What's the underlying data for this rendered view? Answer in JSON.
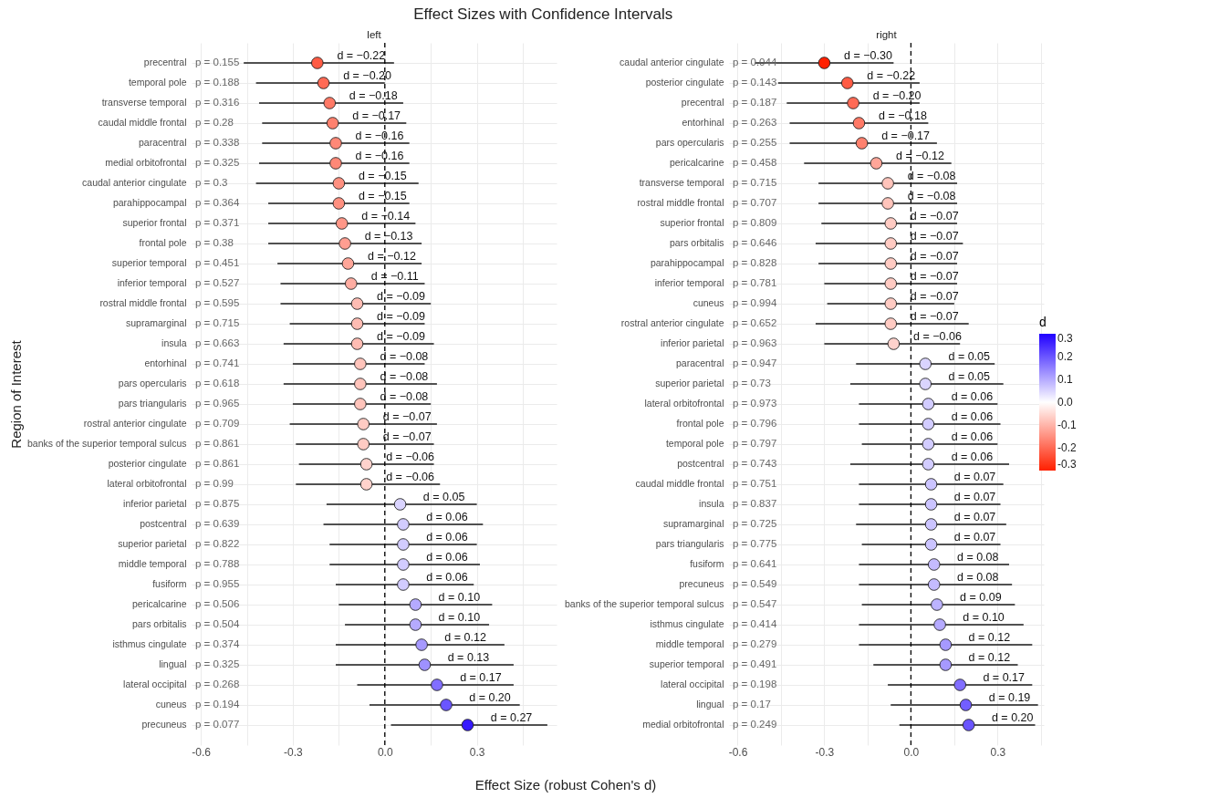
{
  "chart_data": [
    {
      "type": "scatter",
      "orientation": "horizontal",
      "title": "Effect Sizes with Confidence Intervals",
      "subtitle": "left",
      "xlabel": "Effect Size (robust Cohen's d)",
      "ylabel": "Region of Interest",
      "categories": [
        "precentral",
        "temporal pole",
        "transverse temporal",
        "caudal middle frontal",
        "paracentral",
        "medial orbitofrontal",
        "caudal anterior cingulate",
        "parahippocampal",
        "superior frontal",
        "frontal pole",
        "superior temporal",
        "inferior temporal",
        "rostral middle frontal",
        "supramarginal",
        "insula",
        "entorhinal",
        "pars opercularis",
        "pars triangularis",
        "rostral anterior cingulate",
        "banks of the superior temporal sulcus",
        "posterior cingulate",
        "lateral orbitofrontal",
        "inferior parietal",
        "postcentral",
        "superior parietal",
        "middle temporal",
        "fusiform",
        "pericalcarine",
        "pars orbitalis",
        "isthmus cingulate",
        "lingual",
        "lateral occipital",
        "cuneus",
        "precuneus"
      ],
      "values": [
        -0.22,
        -0.2,
        -0.18,
        -0.17,
        -0.16,
        -0.16,
        -0.15,
        -0.15,
        -0.14,
        -0.13,
        -0.12,
        -0.11,
        -0.09,
        -0.09,
        -0.09,
        -0.08,
        -0.08,
        -0.08,
        -0.07,
        -0.07,
        -0.06,
        -0.06,
        0.05,
        0.06,
        0.06,
        0.06,
        0.06,
        0.1,
        0.1,
        0.12,
        0.13,
        0.17,
        0.2,
        0.27
      ],
      "errors": [
        [
          -0.46,
          0.03
        ],
        [
          -0.42,
          0.0
        ],
        [
          -0.41,
          0.06
        ],
        [
          -0.4,
          0.07
        ],
        [
          -0.4,
          0.08
        ],
        [
          -0.41,
          0.08
        ],
        [
          -0.42,
          0.11
        ],
        [
          -0.38,
          0.08
        ],
        [
          -0.38,
          0.1
        ],
        [
          -0.38,
          0.12
        ],
        [
          -0.35,
          0.12
        ],
        [
          -0.34,
          0.13
        ],
        [
          -0.34,
          0.15
        ],
        [
          -0.31,
          0.13
        ],
        [
          -0.33,
          0.16
        ],
        [
          -0.3,
          0.13
        ],
        [
          -0.33,
          0.17
        ],
        [
          -0.3,
          0.15
        ],
        [
          -0.31,
          0.17
        ],
        [
          -0.29,
          0.16
        ],
        [
          -0.28,
          0.16
        ],
        [
          -0.29,
          0.18
        ],
        [
          -0.19,
          0.3
        ],
        [
          -0.2,
          0.32
        ],
        [
          -0.18,
          0.3
        ],
        [
          -0.18,
          0.31
        ],
        [
          -0.16,
          0.29
        ],
        [
          -0.15,
          0.35
        ],
        [
          -0.13,
          0.34
        ],
        [
          -0.16,
          0.39
        ],
        [
          -0.16,
          0.42
        ],
        [
          -0.09,
          0.42
        ],
        [
          -0.05,
          0.44
        ],
        [
          0.02,
          0.53
        ]
      ],
      "value_labels": [
        "d = −0.22",
        "d = −0.20",
        "d = −0.18",
        "d = −0.17",
        "d = −0.16",
        "d = −0.16",
        "d = −0.15",
        "d = −0.15",
        "d = −0.14",
        "d = −0.13",
        "d = −0.12",
        "d = −0.11",
        "d = −0.09",
        "d = −0.09",
        "d = −0.09",
        "d = −0.08",
        "d = −0.08",
        "d = −0.08",
        "d = −0.07",
        "d = −0.07",
        "d = −0.06",
        "d = −0.06",
        "d = 0.05",
        "d = 0.06",
        "d = 0.06",
        "d = 0.06",
        "d = 0.06",
        "d = 0.10",
        "d = 0.10",
        "d = 0.12",
        "d = 0.13",
        "d = 0.17",
        "d = 0.20",
        "d = 0.27"
      ],
      "annotations": [
        "p = 0.155",
        "p = 0.188",
        "p = 0.316",
        "p = 0.28",
        "p = 0.338",
        "p = 0.325",
        "p = 0.3",
        "p = 0.364",
        "p = 0.371",
        "p = 0.38",
        "p = 0.451",
        "p = 0.527",
        "p = 0.595",
        "p = 0.715",
        "p = 0.663",
        "p = 0.741",
        "p = 0.618",
        "p = 0.965",
        "p = 0.709",
        "p = 0.861",
        "p = 0.861",
        "p = 0.99",
        "p = 0.875",
        "p = 0.639",
        "p = 0.822",
        "p = 0.788",
        "p = 0.955",
        "p = 0.506",
        "p = 0.504",
        "p = 0.374",
        "p = 0.325",
        "p = 0.268",
        "p = 0.194",
        "p = 0.077"
      ],
      "xlim": [
        -0.63,
        0.56
      ],
      "xticks": [
        -0.6,
        {
          "value": -0.45,
          "label": null
        },
        -0.3,
        {
          "value": -0.15,
          "label": null
        },
        {
          "value": 0,
          "label": "0.0"
        },
        {
          "value": 0.15,
          "label": null
        },
        0.3,
        {
          "value": 0.45,
          "label": null
        }
      ],
      "ref_lines": [
        {
          "axis": "x",
          "value": 0,
          "line_style": "dashed",
          "color": "#000000"
        }
      ],
      "marker": "circle",
      "grid": true
    },
    {
      "type": "scatter",
      "orientation": "horizontal",
      "subtitle": "right",
      "categories": [
        "caudal anterior cingulate",
        "posterior cingulate",
        "precentral",
        "entorhinal",
        "pars opercularis",
        "pericalcarine",
        "transverse temporal",
        "rostral middle frontal",
        "superior frontal",
        "pars orbitalis",
        "parahippocampal",
        "inferior temporal",
        "cuneus",
        "rostral anterior cingulate",
        "inferior parietal",
        "paracentral",
        "superior parietal",
        "lateral orbitofrontal",
        "frontal pole",
        "temporal pole",
        "postcentral",
        "caudal middle frontal",
        "insula",
        "supramarginal",
        "pars triangularis",
        "fusiform",
        "precuneus",
        "banks of the superior temporal sulcus",
        "isthmus cingulate",
        "middle temporal",
        "superior temporal",
        "lateral occipital",
        "lingual",
        "medial orbitofrontal"
      ],
      "values": [
        -0.3,
        -0.22,
        -0.2,
        -0.18,
        -0.17,
        -0.12,
        -0.08,
        -0.08,
        -0.07,
        -0.07,
        -0.07,
        -0.07,
        -0.07,
        -0.07,
        -0.06,
        0.05,
        0.05,
        0.06,
        0.06,
        0.06,
        0.06,
        0.07,
        0.07,
        0.07,
        0.07,
        0.08,
        0.08,
        0.09,
        0.1,
        0.12,
        0.12,
        0.17,
        0.19,
        0.2
      ],
      "cvalues": [
        -0.3,
        -0.22,
        -0.2,
        -0.18,
        -0.17,
        -0.12,
        -0.08,
        -0.08,
        -0.07,
        -0.07,
        -0.07,
        -0.07,
        -0.07,
        -0.07,
        -0.06,
        0.05,
        0.05,
        0.06,
        0.06,
        0.06,
        0.06,
        0.07,
        0.07,
        0.07,
        0.07,
        0.08,
        0.08,
        0.09,
        0.1,
        0.12,
        0.12,
        0.17,
        0.19,
        0.2
      ],
      "errors": [
        [
          -0.54,
          -0.06
        ],
        [
          -0.46,
          0.03
        ],
        [
          -0.43,
          0.03
        ],
        [
          -0.42,
          0.06
        ],
        [
          -0.42,
          0.09
        ],
        [
          -0.37,
          0.14
        ],
        [
          -0.32,
          0.16
        ],
        [
          -0.32,
          0.16
        ],
        [
          -0.31,
          0.16
        ],
        [
          -0.33,
          0.18
        ],
        [
          -0.32,
          0.16
        ],
        [
          -0.3,
          0.16
        ],
        [
          -0.29,
          0.15
        ],
        [
          -0.33,
          0.2
        ],
        [
          -0.3,
          0.17
        ],
        [
          -0.19,
          0.29
        ],
        [
          -0.21,
          0.32
        ],
        [
          -0.18,
          0.3
        ],
        [
          -0.18,
          0.31
        ],
        [
          -0.17,
          0.3
        ],
        [
          -0.21,
          0.34
        ],
        [
          -0.18,
          0.32
        ],
        [
          -0.18,
          0.31
        ],
        [
          -0.19,
          0.33
        ],
        [
          -0.17,
          0.31
        ],
        [
          -0.18,
          0.34
        ],
        [
          -0.18,
          0.35
        ],
        [
          -0.17,
          0.36
        ],
        [
          -0.18,
          0.39
        ],
        [
          -0.18,
          0.42
        ],
        [
          -0.13,
          0.37
        ],
        [
          -0.08,
          0.42
        ],
        [
          -0.07,
          0.44
        ],
        [
          -0.04,
          0.43
        ]
      ],
      "value_labels": [
        "d = −0.30",
        "d = −0.22",
        "d = −0.20",
        "d = −0.18",
        "d = −0.17",
        "d = −0.12",
        "d = −0.08",
        "d = −0.08",
        "d = −0.07",
        "d = −0.07",
        "d = −0.07",
        "d = −0.07",
        "d = −0.07",
        "d = −0.07",
        "d = −0.06",
        "d = 0.05",
        "d = 0.05",
        "d = 0.06",
        "d = 0.06",
        "d = 0.06",
        "d = 0.06",
        "d = 0.07",
        "d = 0.07",
        "d = 0.07",
        "d = 0.07",
        "d = 0.08",
        "d = 0.08",
        "d = 0.09",
        "d = 0.10",
        "d = 0.12",
        "d = 0.12",
        "d = 0.17",
        "d = 0.19",
        "d = 0.20"
      ],
      "annotations": [
        "p = 0.044",
        "p = 0.143",
        "p = 0.187",
        "p = 0.263",
        "p = 0.255",
        "p = 0.458",
        "p = 0.715",
        "p = 0.707",
        "p = 0.809",
        "p = 0.646",
        "p = 0.828",
        "p = 0.781",
        "p = 0.994",
        "p = 0.652",
        "p = 0.963",
        "p = 0.947",
        "p = 0.73",
        "p = 0.973",
        "p = 0.796",
        "p = 0.797",
        "p = 0.743",
        "p = 0.751",
        "p = 0.837",
        "p = 0.725",
        "p = 0.775",
        "p = 0.641",
        "p = 0.549",
        "p = 0.547",
        "p = 0.414",
        "p = 0.279",
        "p = 0.491",
        "p = 0.198",
        "p = 0.17",
        "p = 0.249"
      ],
      "xlim": [
        -0.63,
        0.46
      ],
      "xticks": [
        -0.6,
        {
          "value": -0.45,
          "label": null
        },
        -0.3,
        {
          "value": -0.15,
          "label": null
        },
        {
          "value": 0,
          "label": "0.0"
        },
        {
          "value": 0.15,
          "label": null
        },
        0.3,
        {
          "value": 0.45,
          "label": null
        }
      ],
      "ref_lines": [
        {
          "axis": "x",
          "value": 0,
          "line_style": "dashed",
          "color": "#000000"
        }
      ],
      "clabel": "d",
      "clim": [
        -0.3,
        0.3
      ],
      "cticks": [
        0.3,
        0.2,
        0.1,
        {
          "value": 0,
          "label": "0.0"
        },
        -0.1,
        -0.2,
        -0.3
      ],
      "marker": "circle",
      "grid": true
    }
  ]
}
